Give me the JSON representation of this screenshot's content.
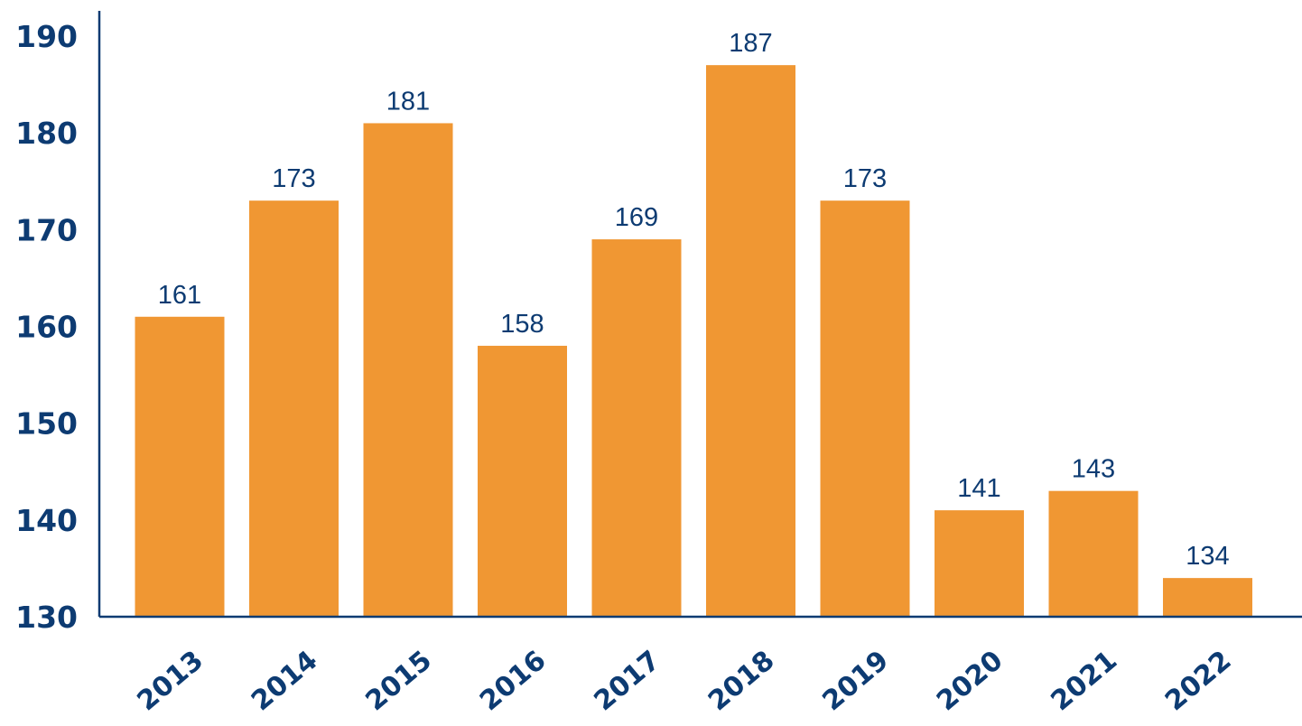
{
  "chart_data": {
    "type": "bar",
    "title": "",
    "xlabel": "",
    "ylabel": "",
    "categories": [
      "2013",
      "2014",
      "2015",
      "2016",
      "2017",
      "2018",
      "2019",
      "2020",
      "2021",
      "2022"
    ],
    "values": [
      161,
      173,
      181,
      158,
      169,
      187,
      173,
      141,
      143,
      134
    ],
    "data_labels": [
      "161",
      "173",
      "181",
      "158",
      "169",
      "187",
      "173",
      "141",
      "143",
      "134"
    ],
    "yticks": [
      130,
      140,
      150,
      160,
      170,
      180,
      190
    ],
    "ytick_labels": [
      "130",
      "140",
      "150",
      "160",
      "170",
      "180",
      "190"
    ],
    "ylim": [
      130,
      190
    ],
    "grid": false,
    "legend": "none",
    "colors": {
      "bar": "#f09733",
      "axis": "#0d3b72",
      "text": "#0d3b72"
    }
  }
}
